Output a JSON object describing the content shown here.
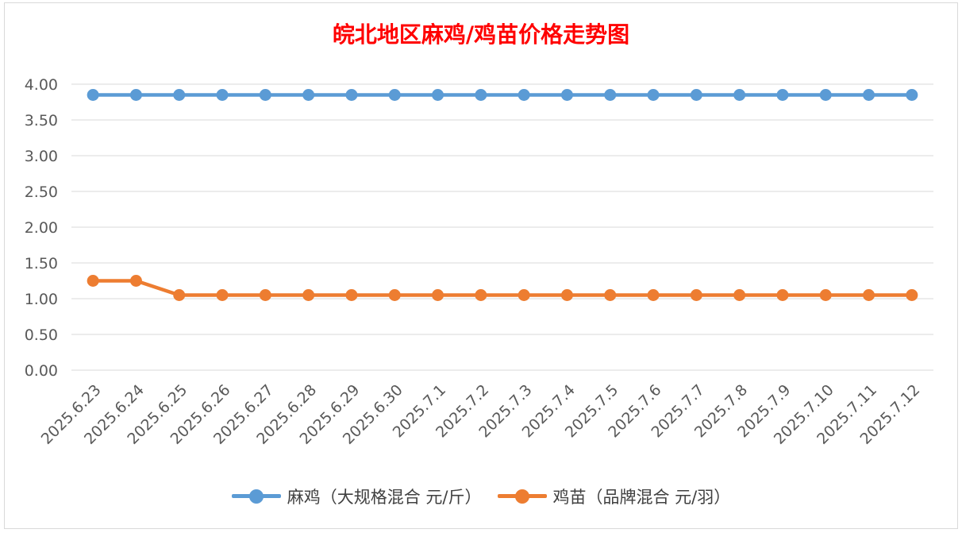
{
  "chart_data": {
    "type": "line",
    "title": "皖北地区麻鸡/鸡苗价格走势图",
    "xlabel": "",
    "ylabel": "",
    "categories": [
      "2025.6.23",
      "2025.6.24",
      "2025.6.25",
      "2025.6.26",
      "2025.6.27",
      "2025.6.28",
      "2025.6.29",
      "2025.6.30",
      "2025.7.1",
      "2025.7.2",
      "2025.7.3",
      "2025.7.4",
      "2025.7.5",
      "2025.7.6",
      "2025.7.7",
      "2025.7.8",
      "2025.7.9",
      "2025.7.10",
      "2025.7.11",
      "2025.7.12"
    ],
    "series": [
      {
        "name": "麻鸡（大规格混合 元/斤）",
        "color": "#5b9bd5",
        "values": [
          3.85,
          3.85,
          3.85,
          3.85,
          3.85,
          3.85,
          3.85,
          3.85,
          3.85,
          3.85,
          3.85,
          3.85,
          3.85,
          3.85,
          3.85,
          3.85,
          3.85,
          3.85,
          3.85,
          3.85
        ]
      },
      {
        "name": "鸡苗（品牌混合 元/羽）",
        "color": "#ed7d31",
        "values": [
          1.25,
          1.25,
          1.05,
          1.05,
          1.05,
          1.05,
          1.05,
          1.05,
          1.05,
          1.05,
          1.05,
          1.05,
          1.05,
          1.05,
          1.05,
          1.05,
          1.05,
          1.05,
          1.05,
          1.05
        ]
      }
    ],
    "ylim": [
      0,
      4
    ],
    "yticks": [
      "0.00",
      "0.50",
      "1.00",
      "1.50",
      "2.00",
      "2.50",
      "3.00",
      "3.50",
      "4.00"
    ],
    "grid": true,
    "legend_position": "bottom",
    "title_color": "#ff0000"
  }
}
